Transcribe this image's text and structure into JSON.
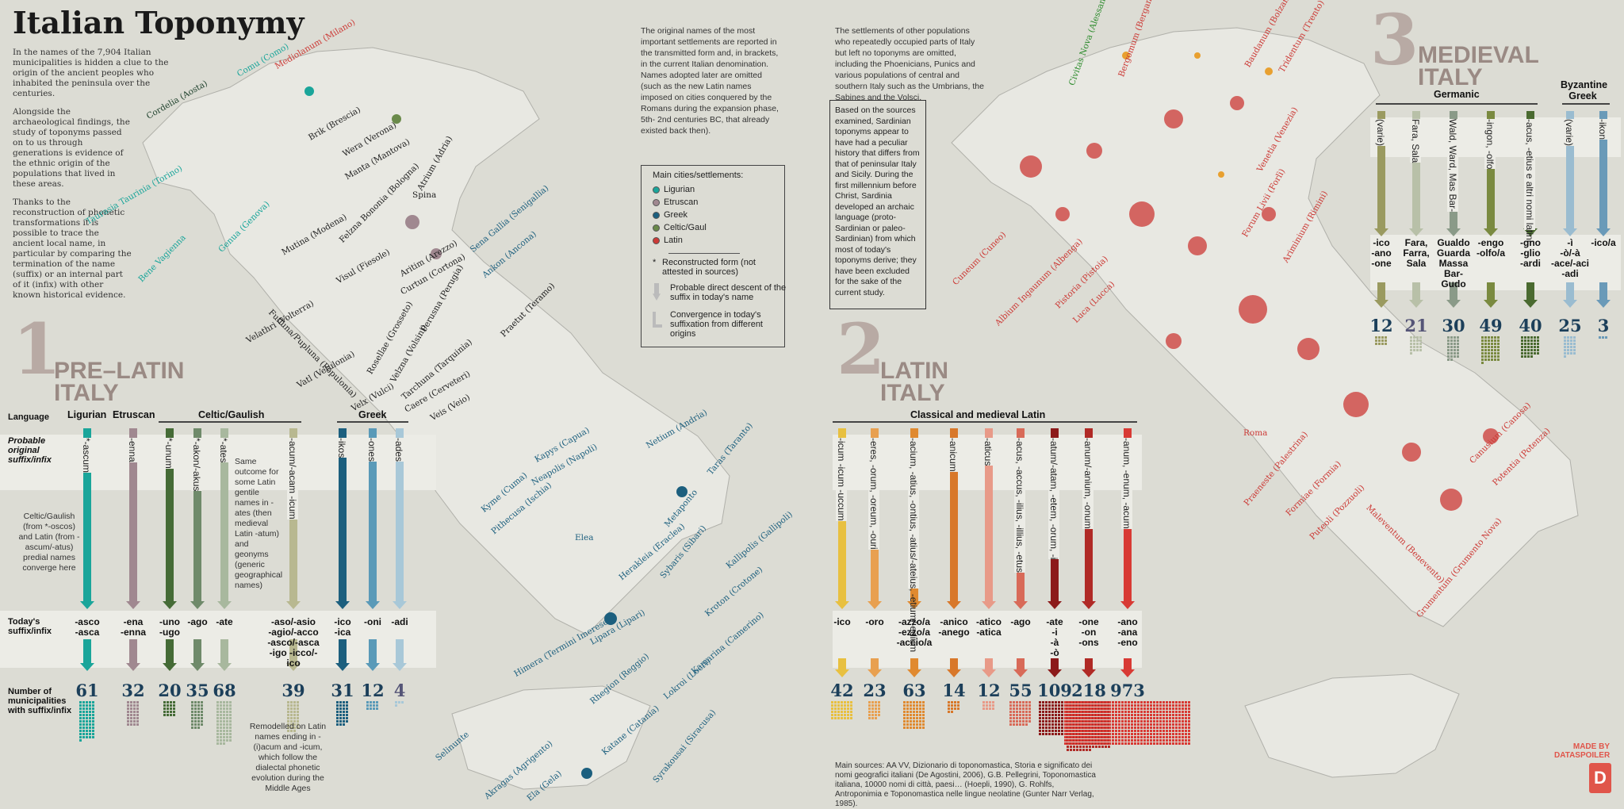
{
  "title": "Italian Toponymy",
  "intro": [
    "In the names of the 7,904 Italian municipalities is hidden a clue to the origin of the ancient peoples who inhabited the peninsula over the centuries.",
    "Alongside the archaeological findings, the study of toponyms passed on to us through generations is evidence of the ethnic origin of the populations that lived in these areas.",
    "Thanks to the reconstruction of phonetic transformations it is possible to trace the ancient local name, in particular by comparing the termination of the name (suffix) or an internal part of it (infix) with other known historical evidence."
  ],
  "middle_text_1": "The original names of the most important settlements are reported in the transmitted form and, in brackets, in the current Italian denomination. Names adopted later are omitted (such as the new Latin names imposed on cities conquered by the Romans during the expansion phase, 5th- 2nd centuries BC, that already existed back then).",
  "middle_text_2": "The settlements of other populations who repeatedly occupied parts of Italy but left no toponyms are omitted, including the Phoenicians, Punics and various populations of central and southern Italy such as the Umbrians, the Sabines and the Volsci.",
  "sardinia_note": "Based on the sources examined, Sardinian toponyms appear to have had a peculiar history that differs from that of peninsular Italy and Sicily. During the first millennium before Christ, Sardinia developed an archaic language (proto-Sardinian or paleo-Sardinian) from which most of today's toponyms derive; they have been excluded for the sake of the current study.",
  "legend": {
    "heading": "Main cities/settlements:",
    "items": [
      {
        "label": "Ligurian",
        "color": "#1aa59a"
      },
      {
        "label": "Etruscan",
        "color": "#a08890"
      },
      {
        "label": "Greek",
        "color": "#1c5f7e"
      },
      {
        "label": "Celtic/Gaul",
        "color": "#6a8a4a"
      },
      {
        "label": "Latin",
        "color": "#cc3a36"
      }
    ],
    "reconstructed": "Reconstructed form (not attested in sources)",
    "descent": "Probable direct descent of the suffix in today's name",
    "convergence": "Convergence in today's suffixation from different origins"
  },
  "section1": {
    "number": "1",
    "title": "PRE–LATIN ITALY",
    "row_labels": {
      "language": "Language",
      "original": "Probable original suffix/infix",
      "today": "Today's suffix/infix",
      "count": "Number of municipalities with suffix/infix"
    },
    "groups": [
      "Ligurian",
      "Etruscan",
      "Celtic/Gaulish",
      "Greek"
    ],
    "columns": [
      {
        "original": "*-ascum",
        "today": "-asco\n-asca",
        "count": "61",
        "color": "#1aa59a"
      },
      {
        "original": "-enna",
        "today": "-ena\n-enna",
        "count": "32",
        "color": "#a08890"
      },
      {
        "original": "*-unum",
        "today": "-uno\n-ugo",
        "count": "20",
        "color": "#456b36"
      },
      {
        "original": "*-akon/-akus",
        "today": "-ago",
        "count": "35",
        "color": "#6f8a6a"
      },
      {
        "original": "*-ates",
        "today": "-ate",
        "count": "68",
        "color": "#a8b89e"
      },
      {
        "original": "-acum/-acam -icum",
        "today": "-aso/-asio\n-agio/-acco\n-asco/-asca\n-igo -icco/-ico",
        "count": "39",
        "color": "#b8b890"
      },
      {
        "original": "-ikos",
        "today": "-ico\n-ica",
        "count": "31",
        "color": "#1c5f7e"
      },
      {
        "original": "-ones",
        "today": "-oni",
        "count": "12",
        "color": "#5a9ab8"
      },
      {
        "original": "-ades",
        "today": "-adi",
        "count": "4",
        "color": "#a8c8d8"
      }
    ],
    "celtic_note": "Celtic/Gaulish (from *-oscos) and Latin (from -ascum/-atus) predial names converge here",
    "same_outcome_note": "Same outcome for some Latin gentile names in -ates (then medieval Latin -atum) and geonyms (generic geographical names)",
    "remodelled_note": "Remodelled on Latin names ending in -(i)acum and -icum, which follow the dialectal phonetic evolution during the Middle Ages"
  },
  "section2": {
    "number": "2",
    "title": "LATIN ITALY",
    "group": "Classical and medieval Latin",
    "columns": [
      {
        "original": "-icum -icum -uccum",
        "today": "-ico",
        "count": "42",
        "color": "#e8c040"
      },
      {
        "original": "-eres, -orum, -oreum, -ouri",
        "today": "-oro",
        "count": "23",
        "color": "#e8a050"
      },
      {
        "original": "-acium, -atius, -ontius, -atius/-ateius, -etium/-edium",
        "today": "-azzo/a\n-ezzo/a\n-accio/a",
        "count": "63",
        "color": "#e08a30"
      },
      {
        "original": "-anicum",
        "today": "-anico\n-anego",
        "count": "14",
        "color": "#d8782a"
      },
      {
        "original": "-aticus",
        "today": "-atico\n-atica",
        "count": "12",
        "color": "#e89a88"
      },
      {
        "original": "-acus, -accus, -ilius, -illius, -etus",
        "today": "-ago",
        "count": "55",
        "color": "#d86a58"
      },
      {
        "original": "-atum/-atam, -etem, -orum, -i",
        "today": "-ate\n-i\n-à\n-ò",
        "count": "109",
        "color": "#8c1a1a"
      },
      {
        "original": "-anum/-anium, -onum",
        "today": "-one\n-on\n-ons",
        "count": "218",
        "color": "#b02a26"
      },
      {
        "original": "-anum, -enum, -acum",
        "today": "-ano\n-ana\n-eno",
        "count": "973",
        "color": "#d83a34"
      }
    ]
  },
  "section3": {
    "number": "3",
    "title": "MEDIEVAL ITALY",
    "groups": [
      "Germanic",
      "Byzantine Greek"
    ],
    "columns": [
      {
        "original": "(varie)",
        "today": "-ico\n-ano\n-one",
        "count": "12",
        "color": "#9a9a60"
      },
      {
        "original": "Fara, Sala",
        "today": "Fara,\nFarra,\nSala",
        "count": "21",
        "color": "#b8c0a8"
      },
      {
        "original": "Wald, Ward, Mas Bar-",
        "today": "Gualdo\nGuarda\nMassa\nBar-\nGudo",
        "count": "30",
        "color": "#8a9a88"
      },
      {
        "original": "-ingon, -olfo",
        "today": "-engo\n-olfo/a",
        "count": "49",
        "color": "#7a8a40"
      },
      {
        "original": "-acus, -etius e altri nomi latini",
        "today": "-gno\n-glio\n-ardi",
        "count": "40",
        "color": "#4a6a30"
      },
      {
        "original": "(varie)",
        "today": "-ì\n-ò/-à\n-ace/-aci\n-adi",
        "count": "25",
        "color": "#9abcd0"
      },
      {
        "original": "-ikon",
        "today": "-ico/a",
        "count": "3",
        "color": "#6a9ab8"
      }
    ]
  },
  "map_labels_left": [
    "Comu (Como)",
    "Mediolanum (Milano)",
    "Cordelia (Aosta)",
    "Brik (Brescia)",
    "Wera (Verona)",
    "Manta (Mantova)",
    "Atrium (Adria)",
    "Spina",
    "Felzna Bononia (Bologna)",
    "Mutina (Modena)",
    "Taurasia Taurinia (Torino)",
    "Genua (Genova)",
    "Bene Vagienna",
    "Sena Gallia (Senigallia)",
    "Ankon (Ancona)",
    "Visul (Fiesole)",
    "Aritim (Arezzo)",
    "Curtun (Cortona)",
    "Perusna (Perugia)",
    "Velathri (Volterra)",
    "Fufluna/Pupluna (Populonia)",
    "Rosellae (Grosseto)",
    "Velzna (Volsini)",
    "Tarchuna (Tarquinia)",
    "Vatl (Vetulonia)",
    "Caere (Cerveteri)",
    "Veis (Veio)",
    "Velx (Vulci)",
    "Praetut (Teramo)",
    "Kapys (Capua)",
    "Neapolis (Napoli)",
    "Kyme (Cuma)",
    "Pithecusa (Ischia)",
    "Netium (Andria)",
    "Taras (Taranto)",
    "Metaponto",
    "Herakleia (Eraclea)",
    "Sybaris (Sibari)",
    "Kallipolis (Gallipoli)",
    "Elea",
    "Kroton (Crotone)",
    "Kamarina (Camerino)",
    "Lokroi (Locri)",
    "Rhegion (Reggio)",
    "Lipara (Lipari)",
    "Himera (Termini Imerese)",
    "Selinunte",
    "Akragas (Agrigento)",
    "Katane (Catania)",
    "Syrakousai (Siracusa)",
    "Ela (Gela)"
  ],
  "map_labels_right": [
    "Civitas Nova (Alessandria)",
    "Bergomum (Bergamo)",
    "Baudanum (Bolzano)",
    "Tridentum (Trento)",
    "Venetia (Venezia)",
    "Forum Livii (Forlì)",
    "Ariminium (Rimini)",
    "Cuneum (Cuneo)",
    "Albium Ingaunum (Albenga)",
    "Pistoria (Pistoia)",
    "Luca (Lucca)",
    "Roma",
    "Praeneste (Palestrina)",
    "Formiae (Formia)",
    "Puteoli (Pozzuoli)",
    "Canusium (Canosa)",
    "Potentia (Potenza)",
    "Maleventum (Benevento)",
    "Grumentum (Grumento Nova)"
  ],
  "sources": "Main sources: AA VV, Dizionario di toponomastica, Storia e significato dei nomi geografici italiani (De Agostini, 2006), G.B. Pellegrini, Toponomastica italiana, 10000 nomi di città, paesi… (Hoepli, 1990), G. Rohlfs, Antroponimia e Toponomastica nelle lingue neolatine (Gunter Narr Verlag, 1985).",
  "credit": "MADE BY DATASPOILER",
  "logo_letter": "D"
}
